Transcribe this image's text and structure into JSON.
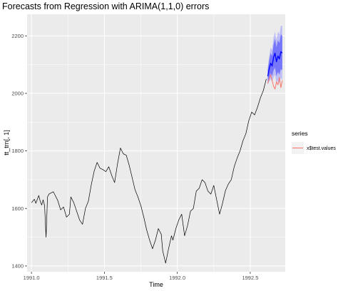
{
  "chart_data": {
    "type": "line",
    "title": "Forecasts from Regression with ARIMA(1,1,0) errors",
    "xlabel": "Time",
    "ylabel": "tt_trn[, 1]",
    "xlim": [
      1990.97,
      1992.74
    ],
    "ylim": [
      1380,
      2275
    ],
    "grid": true,
    "background": "#ebebeb",
    "x_ticks": [
      {
        "value": 1991.0,
        "label": "1991.0"
      },
      {
        "value": 1991.5,
        "label": "1991.5"
      },
      {
        "value": 1992.0,
        "label": "1992.0"
      },
      {
        "value": 1992.5,
        "label": "1992.5"
      }
    ],
    "y_ticks": [
      {
        "value": 1400,
        "label": "1400"
      },
      {
        "value": 1600,
        "label": "1600"
      },
      {
        "value": 1800,
        "label": "1800"
      },
      {
        "value": 2000,
        "label": "2000"
      },
      {
        "value": 2200,
        "label": "2200"
      }
    ],
    "legend": {
      "title": "series",
      "position": "right",
      "entries": [
        "x$test.values"
      ]
    },
    "colors": {
      "history": "#000000",
      "forecast": "#0000ff",
      "test": "#f8766d"
    },
    "series": [
      {
        "name": "",
        "color": "#000000",
        "x": [
          1991.0,
          1991.02,
          1991.03,
          1991.05,
          1991.06,
          1991.07,
          1991.08,
          1991.09,
          1991.1,
          1991.11,
          1991.12,
          1991.15,
          1991.18,
          1991.2,
          1991.22,
          1991.24,
          1991.26,
          1991.27,
          1991.29,
          1991.31,
          1991.33,
          1991.35,
          1991.37,
          1991.39,
          1991.41,
          1991.43,
          1991.45,
          1991.47,
          1991.49,
          1991.51,
          1991.53,
          1991.55,
          1991.57,
          1991.59,
          1991.61,
          1991.63,
          1991.65,
          1991.67,
          1991.69,
          1991.71,
          1991.73,
          1991.75,
          1991.77,
          1991.79,
          1991.81,
          1991.83,
          1991.85,
          1991.87,
          1991.89,
          1991.9,
          1991.92,
          1991.94,
          1991.96,
          1991.97,
          1991.99,
          1992.01,
          1992.03,
          1992.05,
          1992.07,
          1992.09,
          1992.11,
          1992.13,
          1992.15,
          1992.17,
          1992.19,
          1992.21,
          1992.23,
          1992.25,
          1992.27,
          1992.29,
          1992.31,
          1992.33,
          1992.35,
          1992.37,
          1992.39,
          1992.41,
          1992.43,
          1992.45,
          1992.47,
          1992.49,
          1992.51,
          1992.53,
          1992.55,
          1992.57,
          1992.59,
          1992.61
        ],
        "y": [
          1620,
          1632,
          1618,
          1645,
          1625,
          1612,
          1630,
          1610,
          1500,
          1640,
          1650,
          1658,
          1628,
          1595,
          1605,
          1570,
          1580,
          1640,
          1620,
          1590,
          1560,
          1545,
          1600,
          1625,
          1682,
          1730,
          1760,
          1740,
          1735,
          1728,
          1745,
          1715,
          1690,
          1755,
          1810,
          1790,
          1785,
          1750,
          1708,
          1665,
          1640,
          1610,
          1570,
          1525,
          1490,
          1460,
          1490,
          1530,
          1510,
          1452,
          1410,
          1460,
          1505,
          1490,
          1530,
          1560,
          1580,
          1505,
          1540,
          1590,
          1600,
          1660,
          1670,
          1700,
          1690,
          1660,
          1650,
          1680,
          1630,
          1580,
          1618,
          1662,
          1685,
          1700,
          1745,
          1775,
          1800,
          1835,
          1860,
          1905,
          1935,
          1925,
          1952,
          1985,
          2010,
          2050
        ]
      },
      {
        "name": "x$test.values",
        "color": "#f8766d",
        "x": [
          1992.62,
          1992.63,
          1992.64,
          1992.65,
          1992.66,
          1992.67,
          1992.68,
          1992.69,
          1992.7,
          1992.71,
          1992.72
        ],
        "y": [
          2035,
          2050,
          2065,
          2045,
          2025,
          2015,
          2040,
          2030,
          2055,
          2020,
          2045
        ]
      },
      {
        "name": "",
        "color": "#0000ff",
        "x": [
          1992.62,
          1992.63,
          1992.64,
          1992.65,
          1992.66,
          1992.67,
          1992.68,
          1992.69,
          1992.7,
          1992.71,
          1992.72
        ],
        "y": [
          2060,
          2085,
          2105,
          2095,
          2125,
          2140,
          2110,
          2130,
          2120,
          2145,
          2140
        ],
        "lo80": [
          2040,
          2055,
          2070,
          2060,
          2080,
          2090,
          2060,
          2075,
          2065,
          2085,
          2080
        ],
        "hi80": [
          2080,
          2115,
          2140,
          2130,
          2170,
          2190,
          2160,
          2185,
          2175,
          2205,
          2200
        ],
        "lo95": [
          2030,
          2040,
          2050,
          2040,
          2055,
          2065,
          2035,
          2045,
          2035,
          2055,
          2045
        ],
        "hi95": [
          2090,
          2130,
          2160,
          2150,
          2195,
          2215,
          2185,
          2215,
          2205,
          2235,
          2235
        ]
      }
    ]
  }
}
